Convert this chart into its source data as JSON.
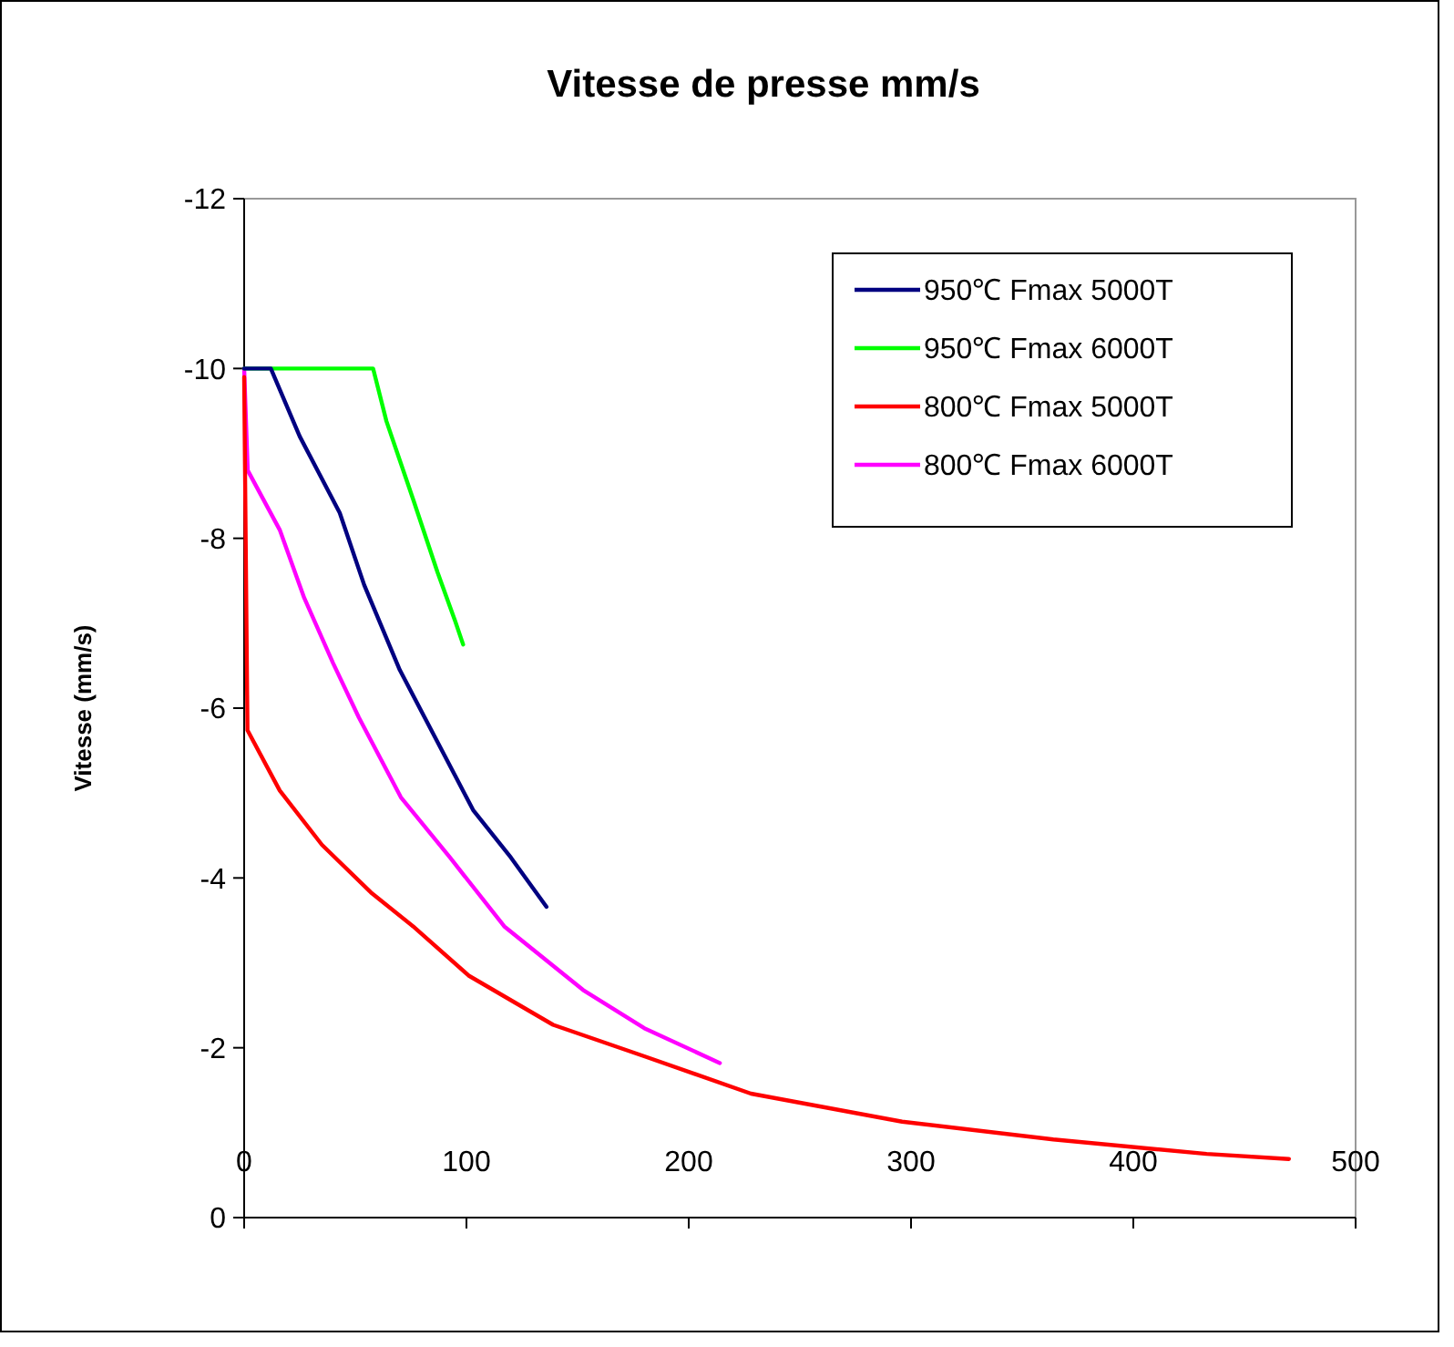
{
  "chart_data": {
    "type": "line",
    "title": "Vitesse de presse mm/s",
    "ylabel": "Vitesse (mm/s)",
    "xlim": [
      0,
      500
    ],
    "xticks": [
      0,
      100,
      200,
      300,
      400,
      500
    ],
    "ylim": [
      0,
      -12
    ],
    "yticks": [
      -12,
      -10,
      -8,
      -6,
      -4,
      -2,
      0
    ],
    "grid": false,
    "legend": "top right",
    "marker": "none",
    "line_style": "solid",
    "series": [
      {
        "name": "950℃  Fmax 5000T",
        "color": "#000080",
        "x": [
          0,
          12,
          25,
          43,
          54,
          70,
          87,
          103,
          120,
          136
        ],
        "values": [
          -10,
          -10,
          -9.2,
          -8.3,
          -7.45,
          -6.45,
          -5.6,
          -4.8,
          -4.24,
          -3.66
        ]
      },
      {
        "name": "950℃  Fmax 6000T",
        "color": "#00ff00",
        "x": [
          0,
          58,
          64,
          76,
          87,
          95,
          98.5
        ],
        "values": [
          -10,
          -10,
          -9.38,
          -8.46,
          -7.6,
          -7.02,
          -6.75
        ]
      },
      {
        "name": "800℃  Fmax 5000T",
        "color": "#ff0000",
        "x": [
          0,
          1.5,
          16,
          35,
          57,
          76,
          101,
          139,
          180,
          228,
          296,
          364,
          433,
          470
        ],
        "values": [
          -9.9,
          -5.74,
          -5.03,
          -4.39,
          -3.83,
          -3.43,
          -2.85,
          -2.27,
          -1.9,
          -1.46,
          -1.13,
          -0.92,
          -0.75,
          -0.69
        ]
      },
      {
        "name": "800℃  Fmax 6000T",
        "color": "#ff00ff",
        "x": [
          0,
          1.6,
          16,
          27,
          40,
          51.6,
          70.5,
          92.6,
          117,
          152.5,
          180,
          214
        ],
        "values": [
          -10,
          -8.8,
          -8.1,
          -7.3,
          -6.53,
          -5.89,
          -4.95,
          -4.24,
          -3.43,
          -2.68,
          -2.23,
          -1.82
        ]
      }
    ]
  }
}
